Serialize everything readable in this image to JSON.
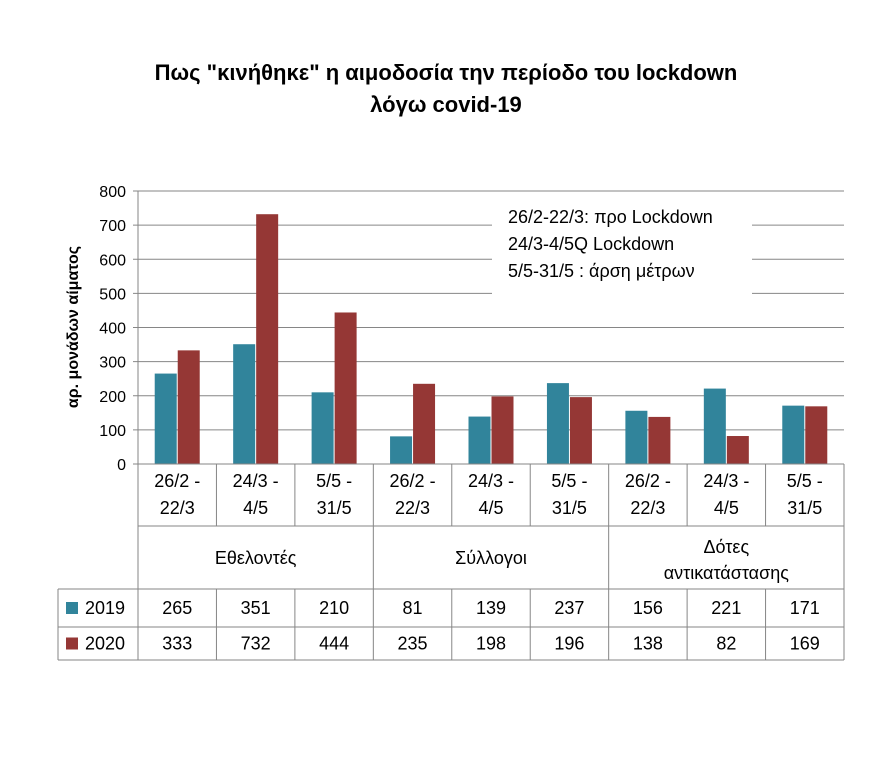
{
  "chart_data": {
    "type": "bar",
    "title_line1": "Πως \"κινήθηκε\" η αιμοδοσία την περίοδο του lockdown",
    "title_line2": "λόγω covid-19",
    "ylabel": "αρ. μονάδων αίματος",
    "ylim": [
      0,
      800
    ],
    "yticks": [
      "0",
      "100",
      "200",
      "300",
      "400",
      "500",
      "600",
      "700",
      "800"
    ],
    "categories": [
      {
        "line1": "26/2 -",
        "line2": "22/3"
      },
      {
        "line1": "24/3 -",
        "line2": "4/5"
      },
      {
        "line1": "5/5 -",
        "line2": "31/5"
      },
      {
        "line1": "26/2 -",
        "line2": "22/3"
      },
      {
        "line1": "24/3 -",
        "line2": "4/5"
      },
      {
        "line1": "5/5 -",
        "line2": "31/5"
      },
      {
        "line1": "26/2 -",
        "line2": "22/3"
      },
      {
        "line1": "24/3 -",
        "line2": "4/5"
      },
      {
        "line1": "5/5 -",
        "line2": "31/5"
      }
    ],
    "groups": [
      {
        "line1": "Εθελοντές",
        "line2": ""
      },
      {
        "line1": "Σύλλογοι",
        "line2": ""
      },
      {
        "line1": "Δότες",
        "line2": "αντικατάστασης"
      }
    ],
    "series": [
      {
        "name": "2019",
        "color": "#31849b",
        "values": [
          265,
          351,
          210,
          81,
          139,
          237,
          156,
          221,
          171
        ]
      },
      {
        "name": "2020",
        "color": "#953735",
        "values": [
          333,
          732,
          444,
          235,
          198,
          196,
          138,
          82,
          169
        ]
      }
    ],
    "annotations": [
      "26/2-22/3: προ Lockdown",
      "24/3-4/5Q Lockdown",
      "5/5-31/5 : άρση μέτρων"
    ],
    "grid": true,
    "legend": "data-table"
  }
}
